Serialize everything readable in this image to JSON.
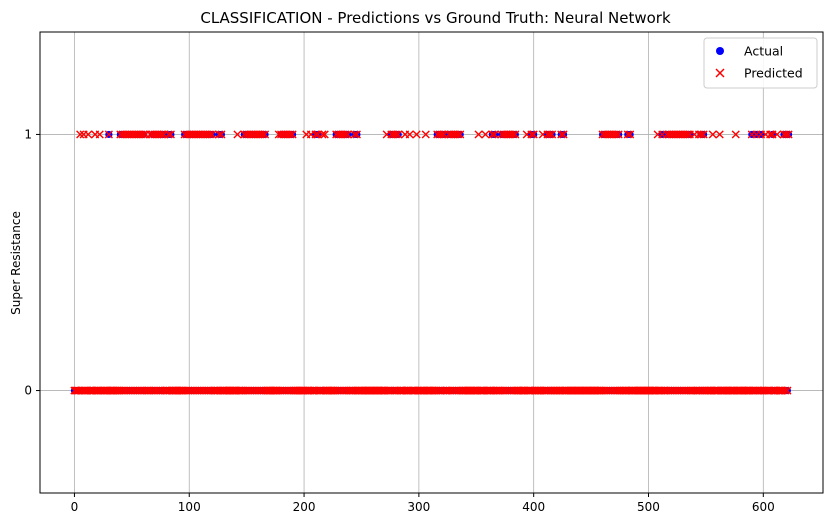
{
  "chart_data": {
    "type": "scatter",
    "title": "CLASSIFICATION - Predictions vs Ground Truth: Neural Network",
    "xlabel": "",
    "ylabel": "Super Resistance",
    "xlim": [
      -30,
      652
    ],
    "ylim": [
      -0.4,
      1.4
    ],
    "x_ticks": [
      0,
      100,
      200,
      300,
      400,
      500,
      600
    ],
    "y_ticks": [
      0,
      1
    ],
    "grid": true,
    "legend_position": "top-right",
    "n_samples": 623,
    "series": [
      {
        "name": "Actual",
        "marker": "circle",
        "color": "#0000ff",
        "positive_x": [
          30,
          40,
          42,
          44,
          46,
          48,
          50,
          52,
          54,
          56,
          58,
          60,
          68,
          70,
          72,
          74,
          76,
          78,
          82,
          84,
          96,
          98,
          100,
          102,
          104,
          106,
          108,
          110,
          112,
          114,
          116,
          118,
          120,
          126,
          128,
          148,
          150,
          152,
          154,
          156,
          158,
          160,
          162,
          164,
          166,
          180,
          182,
          184,
          186,
          188,
          190,
          210,
          212,
          228,
          230,
          232,
          234,
          236,
          238,
          244,
          246,
          276,
          278,
          280,
          282,
          316,
          318,
          320,
          322,
          326,
          328,
          330,
          332,
          334,
          336,
          364,
          366,
          372,
          374,
          376,
          378,
          380,
          382,
          384,
          398,
          400,
          412,
          414,
          416,
          424,
          426,
          460,
          462,
          464,
          466,
          468,
          470,
          472,
          474,
          482,
          484,
          512,
          516,
          518,
          520,
          522,
          524,
          526,
          528,
          530,
          532,
          534,
          536,
          546,
          548,
          590,
          594,
          598,
          608,
          618,
          620,
          622
        ]
      },
      {
        "name": "Predicted",
        "marker": "x",
        "color": "#ff0000",
        "positive_x": [
          5,
          8,
          12,
          18,
          22,
          30,
          40,
          42,
          44,
          46,
          48,
          50,
          52,
          54,
          56,
          58,
          60,
          62,
          66,
          68,
          70,
          72,
          74,
          76,
          78,
          82,
          84,
          96,
          98,
          100,
          102,
          104,
          106,
          108,
          110,
          112,
          114,
          116,
          118,
          120,
          126,
          128,
          142,
          148,
          150,
          152,
          154,
          156,
          158,
          160,
          162,
          164,
          166,
          178,
          180,
          182,
          184,
          186,
          188,
          190,
          202,
          206,
          210,
          212,
          216,
          218,
          228,
          230,
          232,
          234,
          236,
          238,
          244,
          246,
          272,
          276,
          278,
          280,
          282,
          288,
          292,
          298,
          306,
          316,
          318,
          320,
          322,
          326,
          328,
          330,
          332,
          334,
          336,
          352,
          358,
          364,
          366,
          372,
          374,
          376,
          378,
          380,
          382,
          384,
          394,
          398,
          400,
          408,
          412,
          414,
          416,
          424,
          426,
          460,
          462,
          464,
          466,
          468,
          470,
          472,
          474,
          482,
          484,
          508,
          512,
          516,
          518,
          520,
          522,
          524,
          526,
          528,
          530,
          532,
          534,
          536,
          540,
          544,
          546,
          548,
          556,
          562,
          576,
          590,
          594,
          598,
          602,
          606,
          608,
          612,
          618,
          620,
          622
        ]
      }
    ]
  },
  "legend": {
    "actual_label": "Actual",
    "predicted_label": "Predicted"
  }
}
